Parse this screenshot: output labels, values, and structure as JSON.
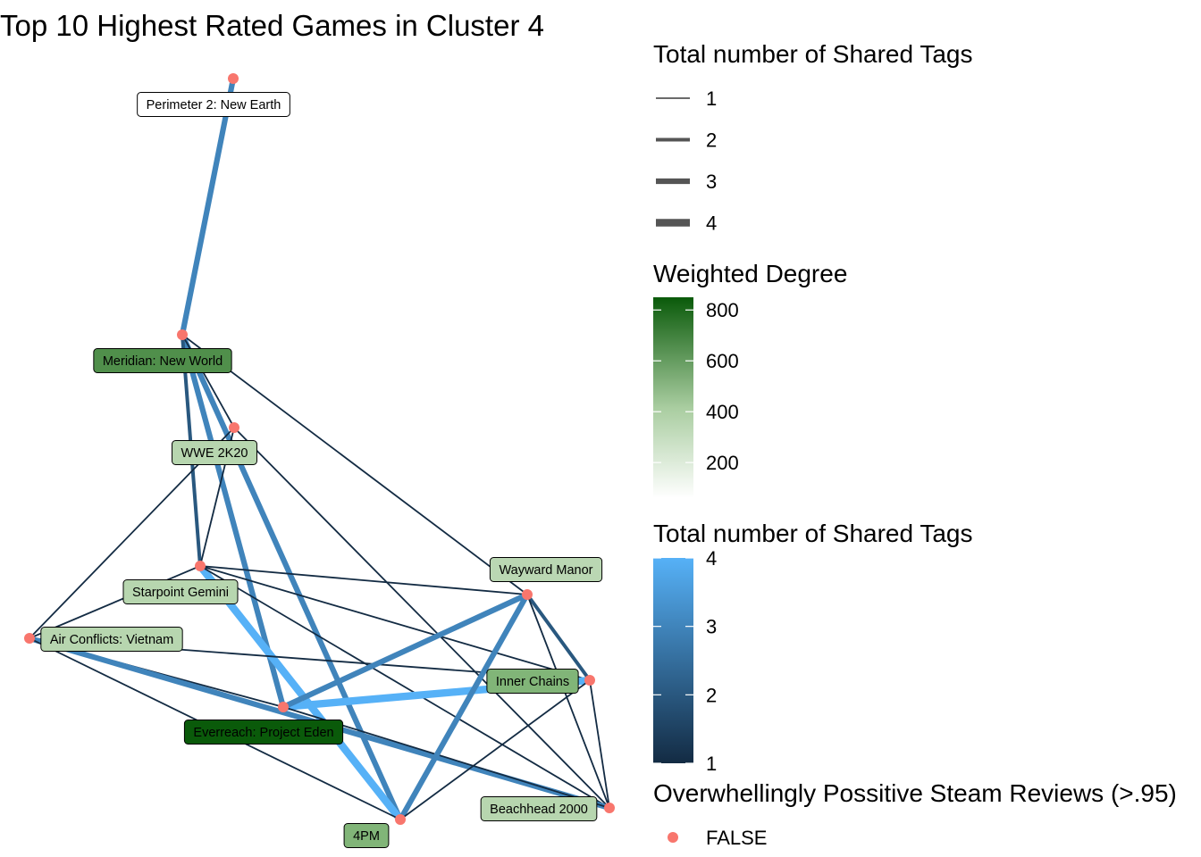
{
  "title": "Top 10 Highest Rated Games in Cluster 4",
  "chart_data": {
    "type": "network",
    "nodes": [
      {
        "id": "perimeter",
        "label": "Perimeter 2: New Earth",
        "weighted_degree": 60,
        "overwhelmingly_positive": "FALSE"
      },
      {
        "id": "meridian",
        "label": "Meridian: New World",
        "weighted_degree": 620,
        "overwhelmingly_positive": "FALSE"
      },
      {
        "id": "wwe",
        "label": "WWE 2K20",
        "weighted_degree": 290,
        "overwhelmingly_positive": "FALSE"
      },
      {
        "id": "starpoint",
        "label": "Starpoint Gemini",
        "weighted_degree": 290,
        "overwhelmingly_positive": "FALSE"
      },
      {
        "id": "wayward",
        "label": "Wayward Manor",
        "weighted_degree": 280,
        "overwhelmingly_positive": "FALSE"
      },
      {
        "id": "airconflicts",
        "label": "Air Conflicts: Vietnam",
        "weighted_degree": 290,
        "overwhelmingly_positive": "FALSE"
      },
      {
        "id": "innerchains",
        "label": "Inner Chains",
        "weighted_degree": 460,
        "overwhelmingly_positive": "FALSE"
      },
      {
        "id": "everreach",
        "label": "Everreach: Project Eden",
        "weighted_degree": 850,
        "overwhelmingly_positive": "FALSE"
      },
      {
        "id": "beachhead",
        "label": "Beachhead 2000",
        "weighted_degree": 290,
        "overwhelmingly_positive": "FALSE"
      },
      {
        "id": "4pm",
        "label": "4PM",
        "weighted_degree": 460,
        "overwhelmingly_positive": "FALSE"
      }
    ],
    "edges": [
      {
        "source": "perimeter",
        "target": "meridian",
        "shared_tags": 3
      },
      {
        "source": "meridian",
        "target": "everreach",
        "shared_tags": 3
      },
      {
        "source": "meridian",
        "target": "4pm",
        "shared_tags": 3
      },
      {
        "source": "meridian",
        "target": "starpoint",
        "shared_tags": 2
      },
      {
        "source": "meridian",
        "target": "wwe",
        "shared_tags": 1
      },
      {
        "source": "meridian",
        "target": "wayward",
        "shared_tags": 1
      },
      {
        "source": "wwe",
        "target": "airconflicts",
        "shared_tags": 1
      },
      {
        "source": "wwe",
        "target": "starpoint",
        "shared_tags": 1
      },
      {
        "source": "wwe",
        "target": "beachhead",
        "shared_tags": 1
      },
      {
        "source": "starpoint",
        "target": "4pm",
        "shared_tags": 4
      },
      {
        "source": "starpoint",
        "target": "airconflicts",
        "shared_tags": 1
      },
      {
        "source": "starpoint",
        "target": "wayward",
        "shared_tags": 1
      },
      {
        "source": "starpoint",
        "target": "innerchains",
        "shared_tags": 1
      },
      {
        "source": "starpoint",
        "target": "beachhead",
        "shared_tags": 1
      },
      {
        "source": "airconflicts",
        "target": "everreach",
        "shared_tags": 1
      },
      {
        "source": "airconflicts",
        "target": "innerchains",
        "shared_tags": 1
      },
      {
        "source": "airconflicts",
        "target": "beachhead",
        "shared_tags": 3
      },
      {
        "source": "airconflicts",
        "target": "4pm",
        "shared_tags": 1
      },
      {
        "source": "everreach",
        "target": "innerchains",
        "shared_tags": 4
      },
      {
        "source": "everreach",
        "target": "wayward",
        "shared_tags": 3
      },
      {
        "source": "everreach",
        "target": "beachhead",
        "shared_tags": 1
      },
      {
        "source": "wayward",
        "target": "4pm",
        "shared_tags": 3
      },
      {
        "source": "wayward",
        "target": "innerchains",
        "shared_tags": 2
      },
      {
        "source": "wayward",
        "target": "beachhead",
        "shared_tags": 1
      },
      {
        "source": "innerchains",
        "target": "4pm",
        "shared_tags": 1
      },
      {
        "source": "innerchains",
        "target": "beachhead",
        "shared_tags": 1
      }
    ],
    "legend_width": {
      "title": "Total number of Shared Tags",
      "labels": [
        "1",
        "2",
        "3",
        "4"
      ]
    },
    "legend_fill": {
      "title": "Weighted Degree",
      "ticks": [
        {
          "value": 200,
          "label": "200"
        },
        {
          "value": 400,
          "label": "400"
        },
        {
          "value": 600,
          "label": "600"
        },
        {
          "value": 800,
          "label": "800"
        }
      ],
      "range": [
        60,
        850
      ],
      "colors": {
        "low": "#ffffff",
        "mid": "#8fbf84",
        "high": "#0a5a0a"
      }
    },
    "legend_color": {
      "title": "Total number of Shared Tags",
      "ticks": [
        {
          "value": 1,
          "label": "1"
        },
        {
          "value": 2,
          "label": "2"
        },
        {
          "value": 3,
          "label": "3"
        },
        {
          "value": 4,
          "label": "4"
        }
      ],
      "range": [
        1,
        4
      ],
      "colors": {
        "low": "#132b43",
        "high": "#56b1f7"
      }
    },
    "legend_point": {
      "title": "Overwhellingly Possitive Steam Reviews (>.95)",
      "labels": [
        "FALSE"
      ],
      "color": "#f8766d"
    }
  }
}
